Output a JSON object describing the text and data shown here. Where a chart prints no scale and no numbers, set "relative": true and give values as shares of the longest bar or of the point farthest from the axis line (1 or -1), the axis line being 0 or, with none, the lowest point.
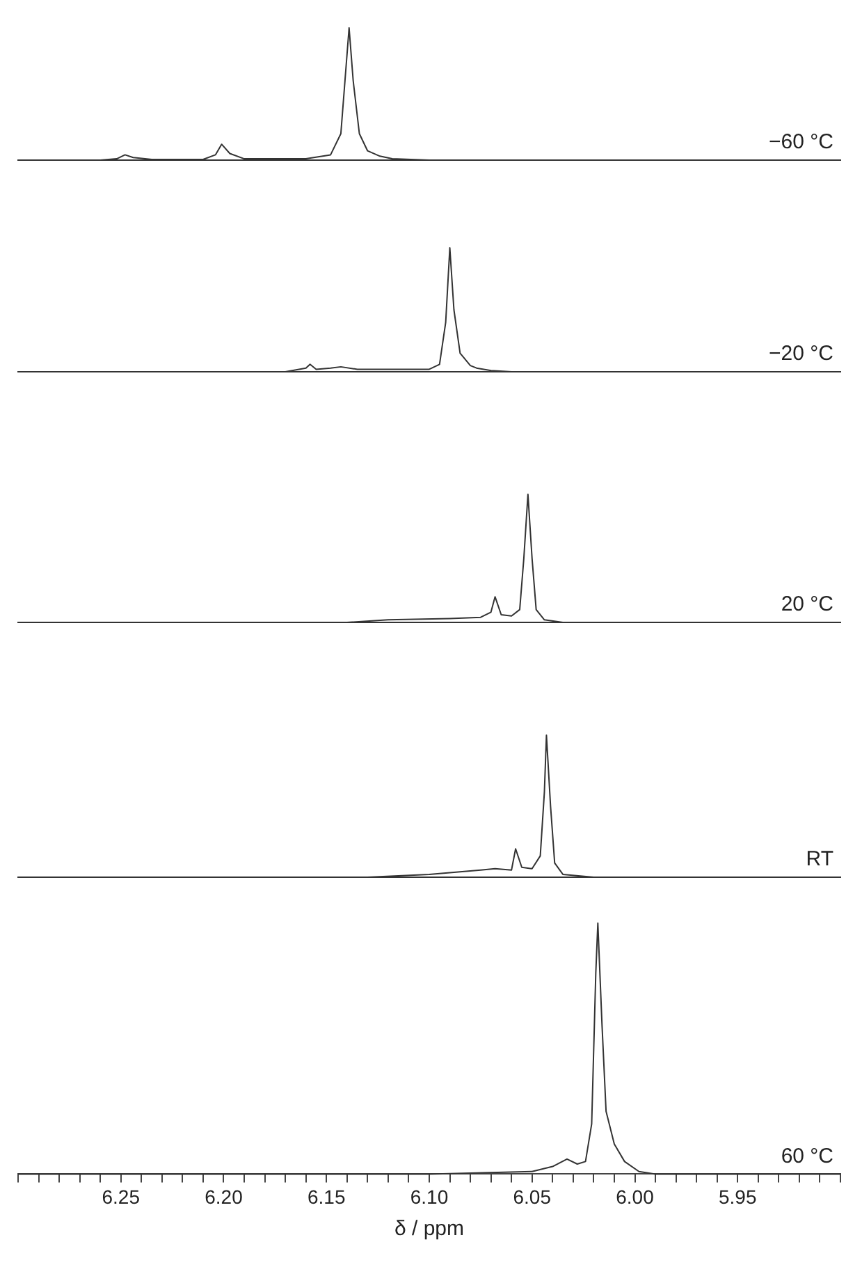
{
  "chart_data": [
    {
      "type": "line",
      "relative": true,
      "color": "#333333",
      "xlim": [
        6.3,
        5.9
      ],
      "tick_labels": false,
      "annotations": [
        "−60 °C"
      ],
      "x": [
        6.3,
        6.26,
        6.252,
        6.248,
        6.244,
        6.235,
        6.21,
        6.204,
        6.201,
        6.197,
        6.19,
        6.16,
        6.148,
        6.143,
        6.141,
        6.139,
        6.137,
        6.134,
        6.13,
        6.124,
        6.118,
        6.1,
        5.9
      ],
      "values": [
        0,
        0,
        0.01,
        0.04,
        0.02,
        0.005,
        0.005,
        0.04,
        0.12,
        0.05,
        0.01,
        0.01,
        0.04,
        0.2,
        0.6,
        1,
        0.6,
        0.2,
        0.07,
        0.03,
        0.01,
        0,
        0
      ]
    },
    {
      "type": "line",
      "relative": true,
      "color": "#333333",
      "xlim": [
        6.3,
        5.9
      ],
      "tick_labels": false,
      "annotations": [
        "−20 °C"
      ],
      "x": [
        6.3,
        6.17,
        6.16,
        6.158,
        6.155,
        6.148,
        6.143,
        6.135,
        6.1,
        6.095,
        6.092,
        6.09,
        6.088,
        6.085,
        6.08,
        6.077,
        6.07,
        6.06,
        5.9
      ],
      "values": [
        0,
        0,
        0.03,
        0.06,
        0.02,
        0.03,
        0.04,
        0.02,
        0.02,
        0.06,
        0.4,
        1,
        0.5,
        0.15,
        0.05,
        0.03,
        0.01,
        0,
        0
      ]
    },
    {
      "type": "line",
      "relative": true,
      "color": "#333333",
      "xlim": [
        6.3,
        5.9
      ],
      "tick_labels": false,
      "annotations": [
        "20 °C"
      ],
      "x": [
        6.3,
        6.14,
        6.12,
        6.09,
        6.075,
        6.07,
        6.068,
        6.065,
        6.06,
        6.056,
        6.054,
        6.052,
        6.05,
        6.048,
        6.044,
        6.035,
        5.9
      ],
      "values": [
        0,
        0,
        0.02,
        0.03,
        0.04,
        0.08,
        0.2,
        0.06,
        0.05,
        0.1,
        0.5,
        1,
        0.5,
        0.1,
        0.02,
        0,
        0
      ]
    },
    {
      "type": "line",
      "relative": true,
      "color": "#333333",
      "xlim": [
        6.3,
        5.9
      ],
      "tick_labels": false,
      "annotations": [
        "RT"
      ],
      "x": [
        6.3,
        6.13,
        6.1,
        6.075,
        6.068,
        6.06,
        6.058,
        6.055,
        6.05,
        6.046,
        6.044,
        6.043,
        6.041,
        6.039,
        6.035,
        6.02,
        5.9
      ],
      "values": [
        0,
        0,
        0.02,
        0.05,
        0.06,
        0.05,
        0.2,
        0.07,
        0.06,
        0.15,
        0.6,
        1,
        0.5,
        0.1,
        0.02,
        0,
        0
      ]
    },
    {
      "type": "line",
      "relative": true,
      "color": "#333333",
      "xlim": [
        6.3,
        5.9
      ],
      "tick_labels": "x",
      "xlabel": "δ / ppm",
      "annotations": [
        "60 °C"
      ],
      "xticks": [
        {
          "value": 6.3,
          "label": null
        },
        {
          "value": 6.29,
          "label": null
        },
        {
          "value": 6.28,
          "label": null
        },
        {
          "value": 6.27,
          "label": null
        },
        {
          "value": 6.26,
          "label": null
        },
        6.25,
        {
          "value": 6.24,
          "label": null
        },
        {
          "value": 6.23,
          "label": null
        },
        {
          "value": 6.22,
          "label": null
        },
        {
          "value": 6.21,
          "label": null
        },
        {
          "value": 6.2,
          "label": "6.20"
        },
        {
          "value": 6.19,
          "label": null
        },
        {
          "value": 6.18,
          "label": null
        },
        {
          "value": 6.17,
          "label": null
        },
        {
          "value": 6.16,
          "label": null
        },
        6.15,
        {
          "value": 6.14,
          "label": null
        },
        {
          "value": 6.13,
          "label": null
        },
        {
          "value": 6.12,
          "label": null
        },
        {
          "value": 6.11,
          "label": null
        },
        {
          "value": 6.1,
          "label": "6.10"
        },
        {
          "value": 6.09,
          "label": null
        },
        {
          "value": 6.08,
          "label": null
        },
        {
          "value": 6.07,
          "label": null
        },
        {
          "value": 6.06,
          "label": null
        },
        6.05,
        {
          "value": 6.04,
          "label": null
        },
        {
          "value": 6.03,
          "label": null
        },
        {
          "value": 6.02,
          "label": null
        },
        {
          "value": 6.01,
          "label": null
        },
        {
          "value": 6.0,
          "label": "6.00"
        },
        {
          "value": 5.99,
          "label": null
        },
        {
          "value": 5.98,
          "label": null
        },
        {
          "value": 5.97,
          "label": null
        },
        {
          "value": 5.96,
          "label": null
        },
        5.95,
        {
          "value": 5.94,
          "label": null
        },
        {
          "value": 5.93,
          "label": null
        },
        {
          "value": 5.92,
          "label": null
        },
        {
          "value": 5.91,
          "label": null
        },
        {
          "value": 5.9,
          "label": null
        }
      ],
      "x": [
        6.3,
        6.1,
        6.05,
        6.04,
        6.033,
        6.028,
        6.024,
        6.021,
        6.019,
        6.018,
        6.016,
        6.014,
        6.01,
        6.005,
        5.998,
        5.99,
        5.9
      ],
      "values": [
        0,
        0,
        0.01,
        0.03,
        0.06,
        0.04,
        0.05,
        0.2,
        0.8,
        1,
        0.6,
        0.25,
        0.12,
        0.05,
        0.01,
        0,
        0
      ]
    }
  ]
}
